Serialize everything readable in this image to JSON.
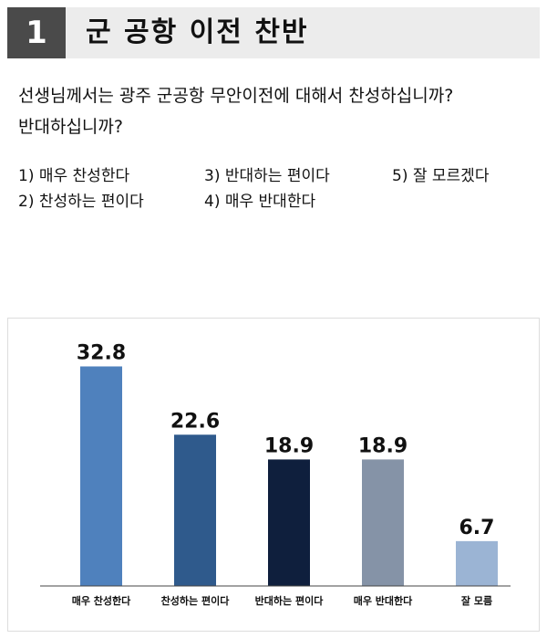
{
  "header": {
    "number": "1",
    "title": "군 공항 이전 찬반"
  },
  "question": {
    "line1": "선생님께서는 광주 군공항 무안이전에 대해서 찬성하십니까?",
    "line2": "반대하십니까?"
  },
  "options": [
    "1) 매우 찬성한다",
    "2) 찬성하는 편이다",
    "3) 반대하는 편이다",
    "4) 매우 반대한다",
    "5) 잘 모르겠다"
  ],
  "chart_data": {
    "type": "bar",
    "categories": [
      "매우 찬성한다",
      "찬성하는 편이다",
      "반대하는 편이다",
      "매우 반대한다",
      "잘 모름"
    ],
    "values": [
      32.8,
      22.6,
      18.9,
      18.9,
      6.7
    ],
    "value_labels": [
      "32.8",
      "22.6",
      "18.9",
      "18.9",
      "6.7"
    ],
    "colors": [
      "#4f81bd",
      "#2f5a8c",
      "#0f1f3d",
      "#8593a7",
      "#9bb4d4"
    ],
    "ylim": [
      0,
      36
    ],
    "grid": false,
    "legend": "none"
  }
}
